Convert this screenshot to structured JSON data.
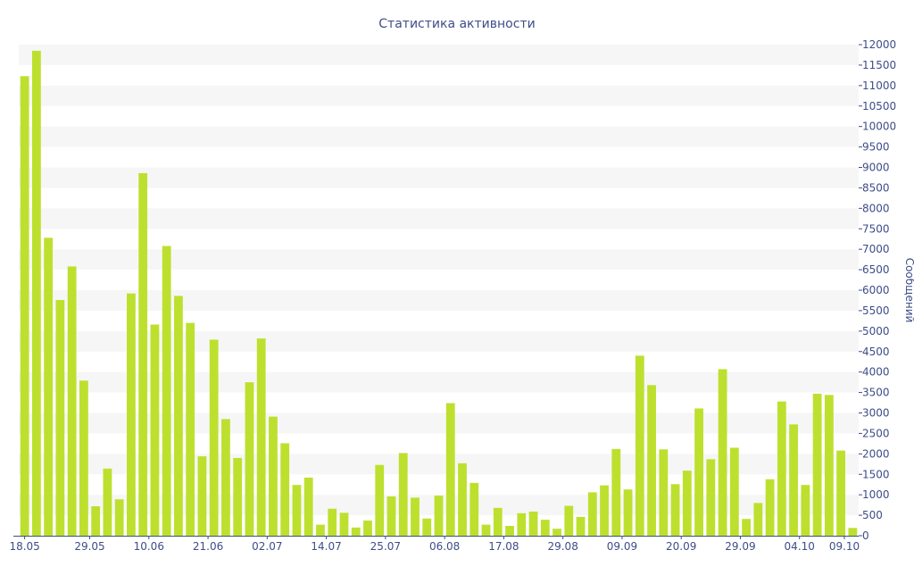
{
  "chart_data": {
    "type": "bar",
    "title": "Статистика активности",
    "xlabel": "",
    "ylabel": "Сообщений",
    "ylim": [
      0,
      12000
    ],
    "y_ticks": [
      0,
      500,
      1000,
      1500,
      2000,
      2500,
      3000,
      3500,
      4000,
      4500,
      5000,
      5500,
      6000,
      6500,
      7000,
      7500,
      8000,
      8500,
      9000,
      9500,
      10000,
      10500,
      11000,
      11500,
      12000
    ],
    "y_axis_position": "right",
    "x_tick_labels": [
      {
        "label": "18.05",
        "index": 0
      },
      {
        "label": "29.05",
        "index": 5.5
      },
      {
        "label": "10.06",
        "index": 10.5
      },
      {
        "label": "21.06",
        "index": 15.5
      },
      {
        "label": "02.07",
        "index": 20.5
      },
      {
        "label": "14.07",
        "index": 25.5
      },
      {
        "label": "25.07",
        "index": 30.5
      },
      {
        "label": "06.08",
        "index": 35.5
      },
      {
        "label": "17.08",
        "index": 40.5
      },
      {
        "label": "29.08",
        "index": 45.5
      },
      {
        "label": "09.09",
        "index": 50.5
      },
      {
        "label": "20.09",
        "index": 55.5
      },
      {
        "label": "29.09",
        "index": 60.5
      },
      {
        "label": "04.10",
        "index": 65.5
      },
      {
        "label": "09.10",
        "index": 70.5
      }
    ],
    "bar_color": "#bde02f",
    "band_color": "#f6f6f6",
    "grid": "alternating horizontal bands",
    "values": [
      11230,
      11850,
      7280,
      5760,
      6580,
      3790,
      720,
      1640,
      890,
      5920,
      8860,
      5160,
      7080,
      5860,
      5200,
      1940,
      4790,
      2850,
      1900,
      3750,
      4820,
      2910,
      2260,
      1240,
      1420,
      270,
      660,
      560,
      200,
      370,
      1730,
      960,
      2020,
      930,
      420,
      980,
      3240,
      1770,
      1290,
      270,
      680,
      240,
      550,
      590,
      390,
      170,
      730,
      460,
      1060,
      1230,
      2120,
      1130,
      4400,
      3680,
      2110,
      1260,
      1590,
      3110,
      1870,
      4070,
      2150,
      410,
      800,
      1380,
      3280,
      2720,
      1240,
      3470,
      3440,
      2080,
      190
    ]
  }
}
